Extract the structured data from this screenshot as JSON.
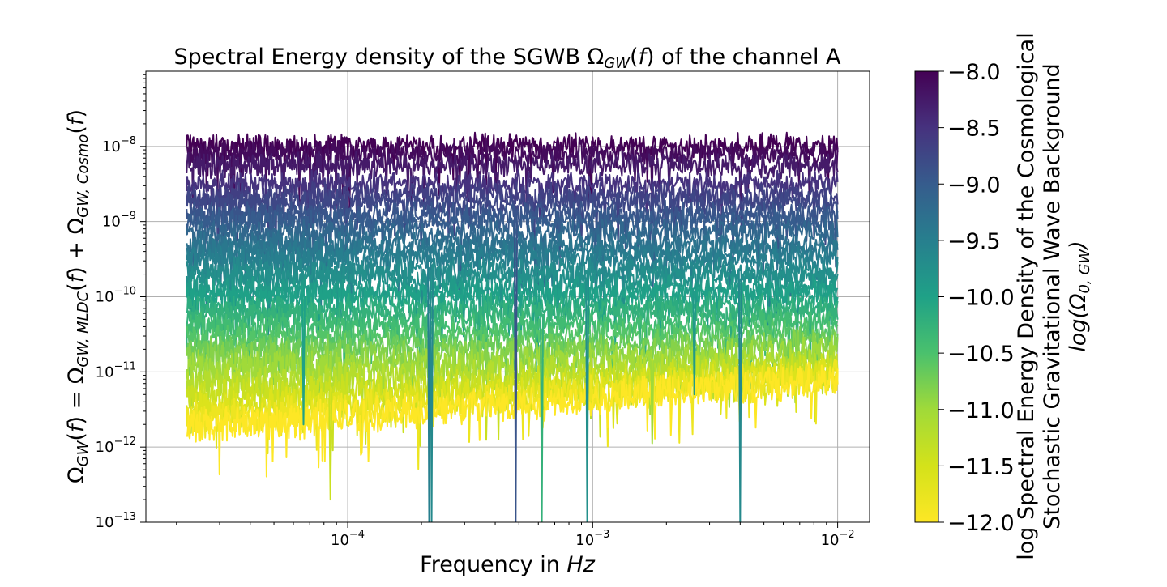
{
  "figure": {
    "title": "Spectral Energy density of the SGWB Ω",
    "title_sub": "GW",
    "title_mid": "(",
    "title_f": "f",
    "title_end": ") of the channel A",
    "xlabel_prefix": "Frequency in ",
    "xlabel_unit": "Hz",
    "ylabel_parts": [
      "Ω",
      "GW",
      "(",
      "f",
      ") = Ω",
      "GW, MLDC",
      "(",
      "f",
      ") + Ω",
      "GW, Cosmo",
      "(",
      "f",
      ")"
    ],
    "colorbar_label_1": "log Spectral Energy Density of the Cosmological",
    "colorbar_label_2": "Stochastic Gravitational Wave Background",
    "colorbar_label_3_pre": "log(Ω",
    "colorbar_label_3_sub": "0, GW",
    "colorbar_label_3_post": ")"
  },
  "chart_data": {
    "type": "line",
    "x_scale": "log",
    "y_scale": "log",
    "xlim": [
      1.5e-05,
      0.0135
    ],
    "ylim": [
      1e-13,
      1e-07
    ],
    "x_ticks": [
      {
        "value": 0.0001,
        "base": "10",
        "exp": "−4"
      },
      {
        "value": 0.001,
        "base": "10",
        "exp": "−3"
      },
      {
        "value": 0.01,
        "base": "10",
        "exp": "−2"
      }
    ],
    "y_ticks": [
      {
        "value": 1e-13,
        "base": "10",
        "exp": "−13"
      },
      {
        "value": 1e-12,
        "base": "10",
        "exp": "−12"
      },
      {
        "value": 1e-11,
        "base": "10",
        "exp": "−11"
      },
      {
        "value": 1e-10,
        "base": "10",
        "exp": "−10"
      },
      {
        "value": 1e-09,
        "base": "10",
        "exp": "−9"
      },
      {
        "value": 1e-08,
        "base": "10",
        "exp": "−8"
      }
    ],
    "grid": true,
    "x_range": [
      2.2e-05,
      0.01
    ],
    "colormap": "viridis",
    "colorbar_range": [
      -12.0,
      -8.0
    ],
    "colorbar_ticks": [
      "−8.0",
      "−8.5",
      "−9.0",
      "−9.5",
      "−10.0",
      "−10.5",
      "−11.0",
      "−11.5",
      "−12.0"
    ],
    "colorbar_tick_values": [
      -8.0,
      -8.5,
      -9.0,
      -9.5,
      -10.0,
      -10.5,
      -11.0,
      -11.5,
      -12.0
    ],
    "mldc_floor": {
      "x": [
        2.2e-05,
        0.0001,
        0.001,
        0.01
      ],
      "log10_y": [
        -12.1,
        -11.8,
        -11.45,
        -11.15
      ]
    },
    "series": [
      {
        "log_omega0": -8.0
      },
      {
        "log_omega0": -8.1
      },
      {
        "log_omega0": -8.25
      },
      {
        "log_omega0": -8.5
      },
      {
        "log_omega0": -8.65
      },
      {
        "log_omega0": -8.75
      },
      {
        "log_omega0": -8.9
      },
      {
        "log_omega0": -9.0
      },
      {
        "log_omega0": -9.15
      },
      {
        "log_omega0": -9.3
      },
      {
        "log_omega0": -9.4
      },
      {
        "log_omega0": -9.5
      },
      {
        "log_omega0": -9.65
      },
      {
        "log_omega0": -9.75
      },
      {
        "log_omega0": -9.9
      },
      {
        "log_omega0": -10.0
      },
      {
        "log_omega0": -10.15
      },
      {
        "log_omega0": -10.25
      },
      {
        "log_omega0": -10.4
      },
      {
        "log_omega0": -10.55
      },
      {
        "log_omega0": -10.7
      },
      {
        "log_omega0": -10.85
      },
      {
        "log_omega0": -11.0
      },
      {
        "log_omega0": -11.2
      },
      {
        "log_omega0": -11.4
      },
      {
        "log_omega0": -11.6
      },
      {
        "log_omega0": -11.8
      },
      {
        "log_omega0": -12.0
      }
    ],
    "deep_dips": [
      {
        "x": 6.6e-05,
        "log10_y": -11.7,
        "series_index": 15
      },
      {
        "x": 8.5e-05,
        "log10_y": -12.7,
        "series_index": 24
      },
      {
        "x": 0.000215,
        "log10_y": -13.0,
        "series_index": 11
      },
      {
        "x": 0.00022,
        "log10_y": -13.0,
        "series_index": 12
      },
      {
        "x": 0.000485,
        "log10_y": -13.0,
        "series_index": 6
      },
      {
        "x": 0.00062,
        "log10_y": -13.0,
        "series_index": 17
      },
      {
        "x": 0.00095,
        "log10_y": -13.0,
        "series_index": 13
      },
      {
        "x": 0.00175,
        "log10_y": -11.95,
        "series_index": 22
      },
      {
        "x": 0.0026,
        "log10_y": -11.3,
        "series_index": 14
      },
      {
        "x": 0.004,
        "log10_y": -13.0,
        "series_index": 12
      }
    ]
  }
}
